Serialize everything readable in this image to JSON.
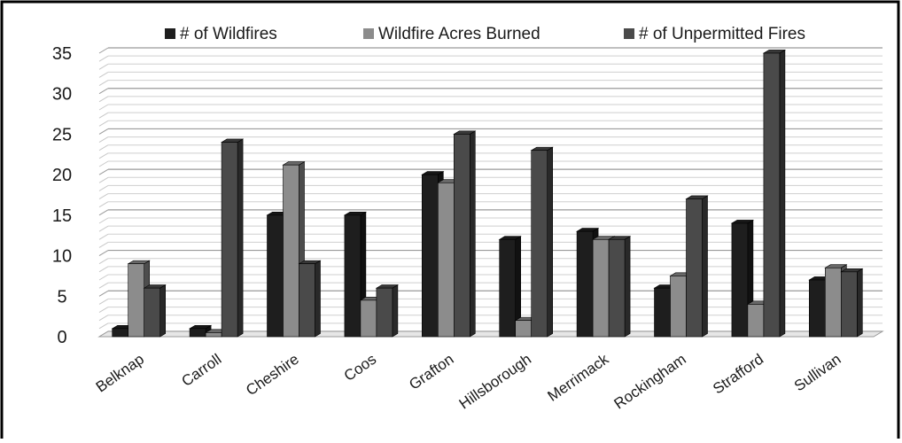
{
  "chart_data": {
    "type": "bar",
    "title": "",
    "xlabel": "",
    "ylabel": "",
    "ylim": [
      0,
      35
    ],
    "yticks": [
      0,
      5,
      10,
      15,
      20,
      25,
      30,
      35
    ],
    "grid": "horizontal",
    "legend_position": "top",
    "style": "3d-clustered-column",
    "categories": [
      "Belknap",
      "Carroll",
      "Cheshire",
      "Coos",
      "Grafton",
      "Hillsborough",
      "Merrimack",
      "Rockingham",
      "Strafford",
      "Sullivan"
    ],
    "series": [
      {
        "name": "# of Wildfires",
        "color": "#1e1e1e",
        "values": [
          1,
          1,
          15,
          15,
          20,
          12,
          13,
          6,
          14,
          7
        ]
      },
      {
        "name": "Wildfire Acres Burned",
        "color": "#8c8c8c",
        "values": [
          9,
          0.5,
          21.2,
          4.5,
          19,
          2,
          12,
          7.5,
          4,
          8.5
        ]
      },
      {
        "name": "# of Unpermitted Fires",
        "color": "#4a4a4a",
        "values": [
          6,
          24,
          9,
          6,
          25,
          23,
          12,
          17,
          35,
          8
        ]
      }
    ]
  }
}
